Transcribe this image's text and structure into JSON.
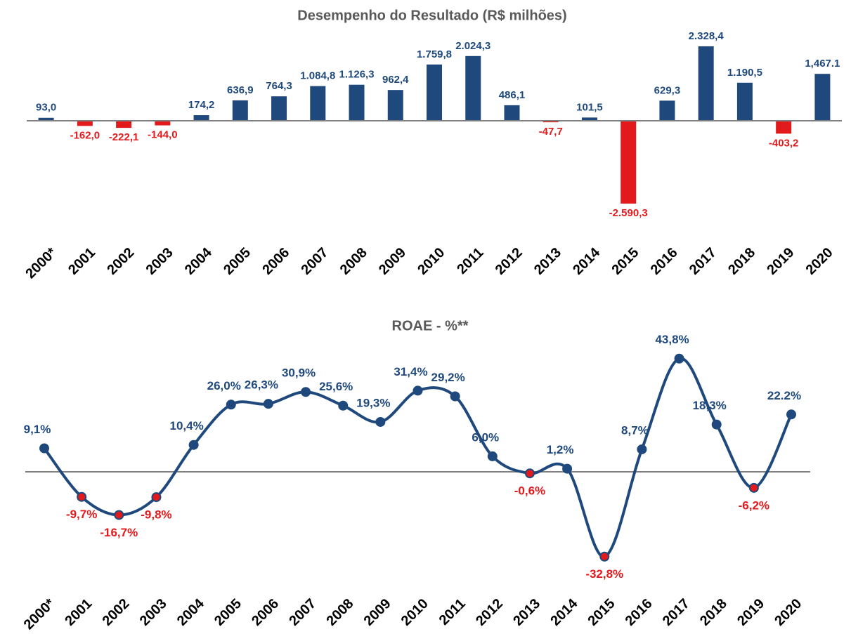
{
  "chart_data": [
    {
      "type": "bar",
      "title": "Desempenho do Resultado (R$ milhões)",
      "categories": [
        "2000*",
        "2001",
        "2002",
        "2003",
        "2004",
        "2005",
        "2006",
        "2007",
        "2008",
        "2009",
        "2010",
        "2011",
        "2012",
        "2013",
        "2014",
        "2015",
        "2016",
        "2017",
        "2018",
        "2019",
        "2020"
      ],
      "values": [
        93.0,
        -162.0,
        -222.1,
        -144.0,
        174.2,
        636.9,
        764.3,
        1084.8,
        1126.3,
        962.4,
        1759.8,
        2024.3,
        486.1,
        -47.7,
        101.5,
        -2590.3,
        629.3,
        2328.4,
        1190.5,
        -403.2,
        1467.1
      ],
      "value_labels": [
        "93,0",
        "-162,0",
        "-222,1",
        "-144,0",
        "174,2",
        "636,9",
        "764,3",
        "1.084,8",
        "1.126,3",
        "962,4",
        "1.759,8",
        "2.024,3",
        "486,1",
        "-47,7",
        "101,5",
        "-2.590,3",
        "629,3",
        "2.328,4",
        "1.190,5",
        "-403,2",
        "1,467.1"
      ],
      "color": "#1f497d",
      "negative_color": "#e31a1c"
    },
    {
      "type": "line",
      "title": "ROAE - %**",
      "categories": [
        "2000*",
        "2001",
        "2002",
        "2003",
        "2004",
        "2005",
        "2006",
        "2007",
        "2008",
        "2009",
        "2010",
        "2011",
        "2012",
        "2013",
        "2014",
        "2015",
        "2016",
        "2017",
        "2018",
        "2019",
        "2020"
      ],
      "values": [
        9.1,
        -9.7,
        -16.7,
        -9.8,
        10.4,
        26.0,
        26.3,
        30.9,
        25.6,
        19.3,
        31.4,
        29.2,
        6.0,
        -0.6,
        1.2,
        -32.8,
        8.7,
        43.8,
        18.3,
        -6.2,
        22.2
      ],
      "value_labels": [
        "9,1%",
        "-9,7%",
        "-16,7%",
        "-9,8%",
        "10,4%",
        "26,0%",
        "26,3%",
        "30,9%",
        "25,6%",
        "19,3%",
        "31,4%",
        "29,2%",
        "6,0%",
        "-0,6%",
        "1,2%",
        "-32,8%",
        "8,7%",
        "43,8%",
        "18,3%",
        "-6,2%",
        "22.2%"
      ],
      "color": "#1f497d",
      "negative_color": "#e31a1c"
    }
  ]
}
